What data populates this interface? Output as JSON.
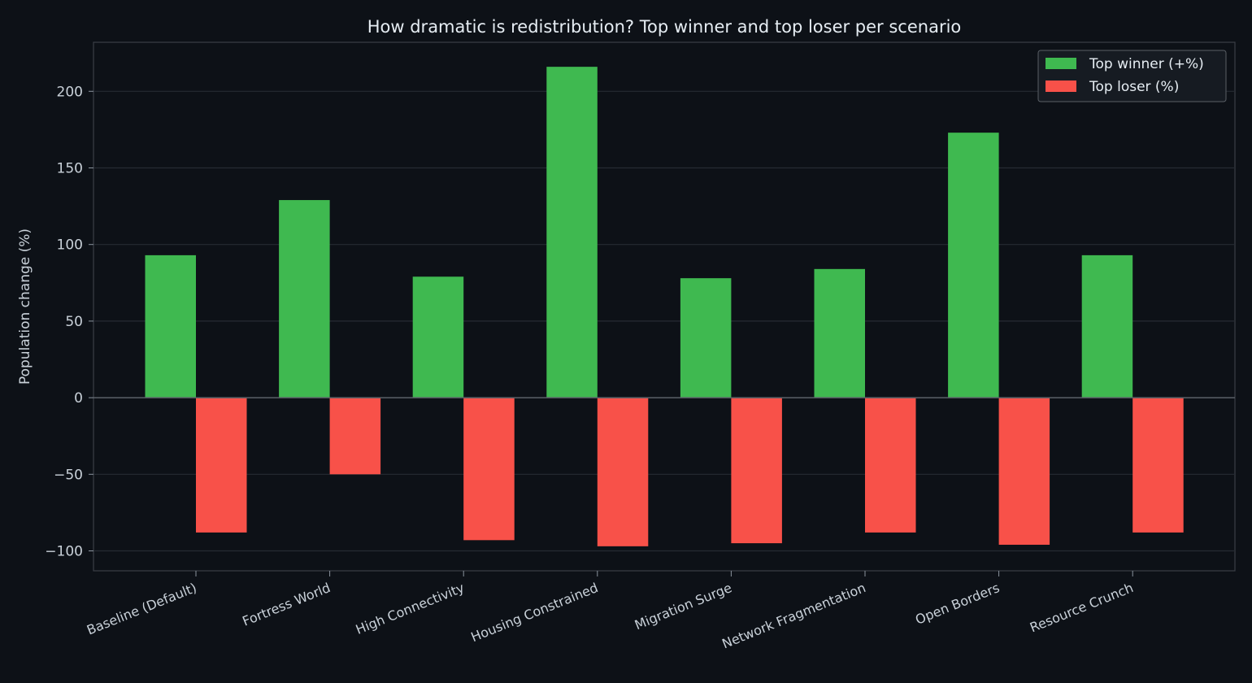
{
  "chart_data": {
    "type": "bar",
    "title": "How dramatic is redistribution? Top winner and top loser per scenario",
    "xlabel": "",
    "ylabel": "Population change (%)",
    "ylim": [
      -113,
      232
    ],
    "yticks": [
      -100,
      -50,
      0,
      50,
      100,
      150,
      200
    ],
    "ytick_labels": [
      "−100",
      "−50",
      "0",
      "50",
      "100",
      "150",
      "200"
    ],
    "grid": true,
    "legend_position": "top-right",
    "categories": [
      "Baseline (Default)",
      "Fortress World",
      "High Connectivity",
      "Housing Constrained",
      "Migration Surge",
      "Network Fragmentation",
      "Open Borders",
      "Resource Crunch"
    ],
    "series": [
      {
        "name": "Top winner (+%)",
        "color": "#3fb950",
        "values": [
          93,
          129,
          79,
          216,
          78,
          84,
          173,
          93
        ]
      },
      {
        "name": "Top loser (%)",
        "color": "#f85149",
        "values": [
          -88,
          -50,
          -93,
          -97,
          -95,
          -88,
          -96,
          -88
        ]
      }
    ]
  }
}
